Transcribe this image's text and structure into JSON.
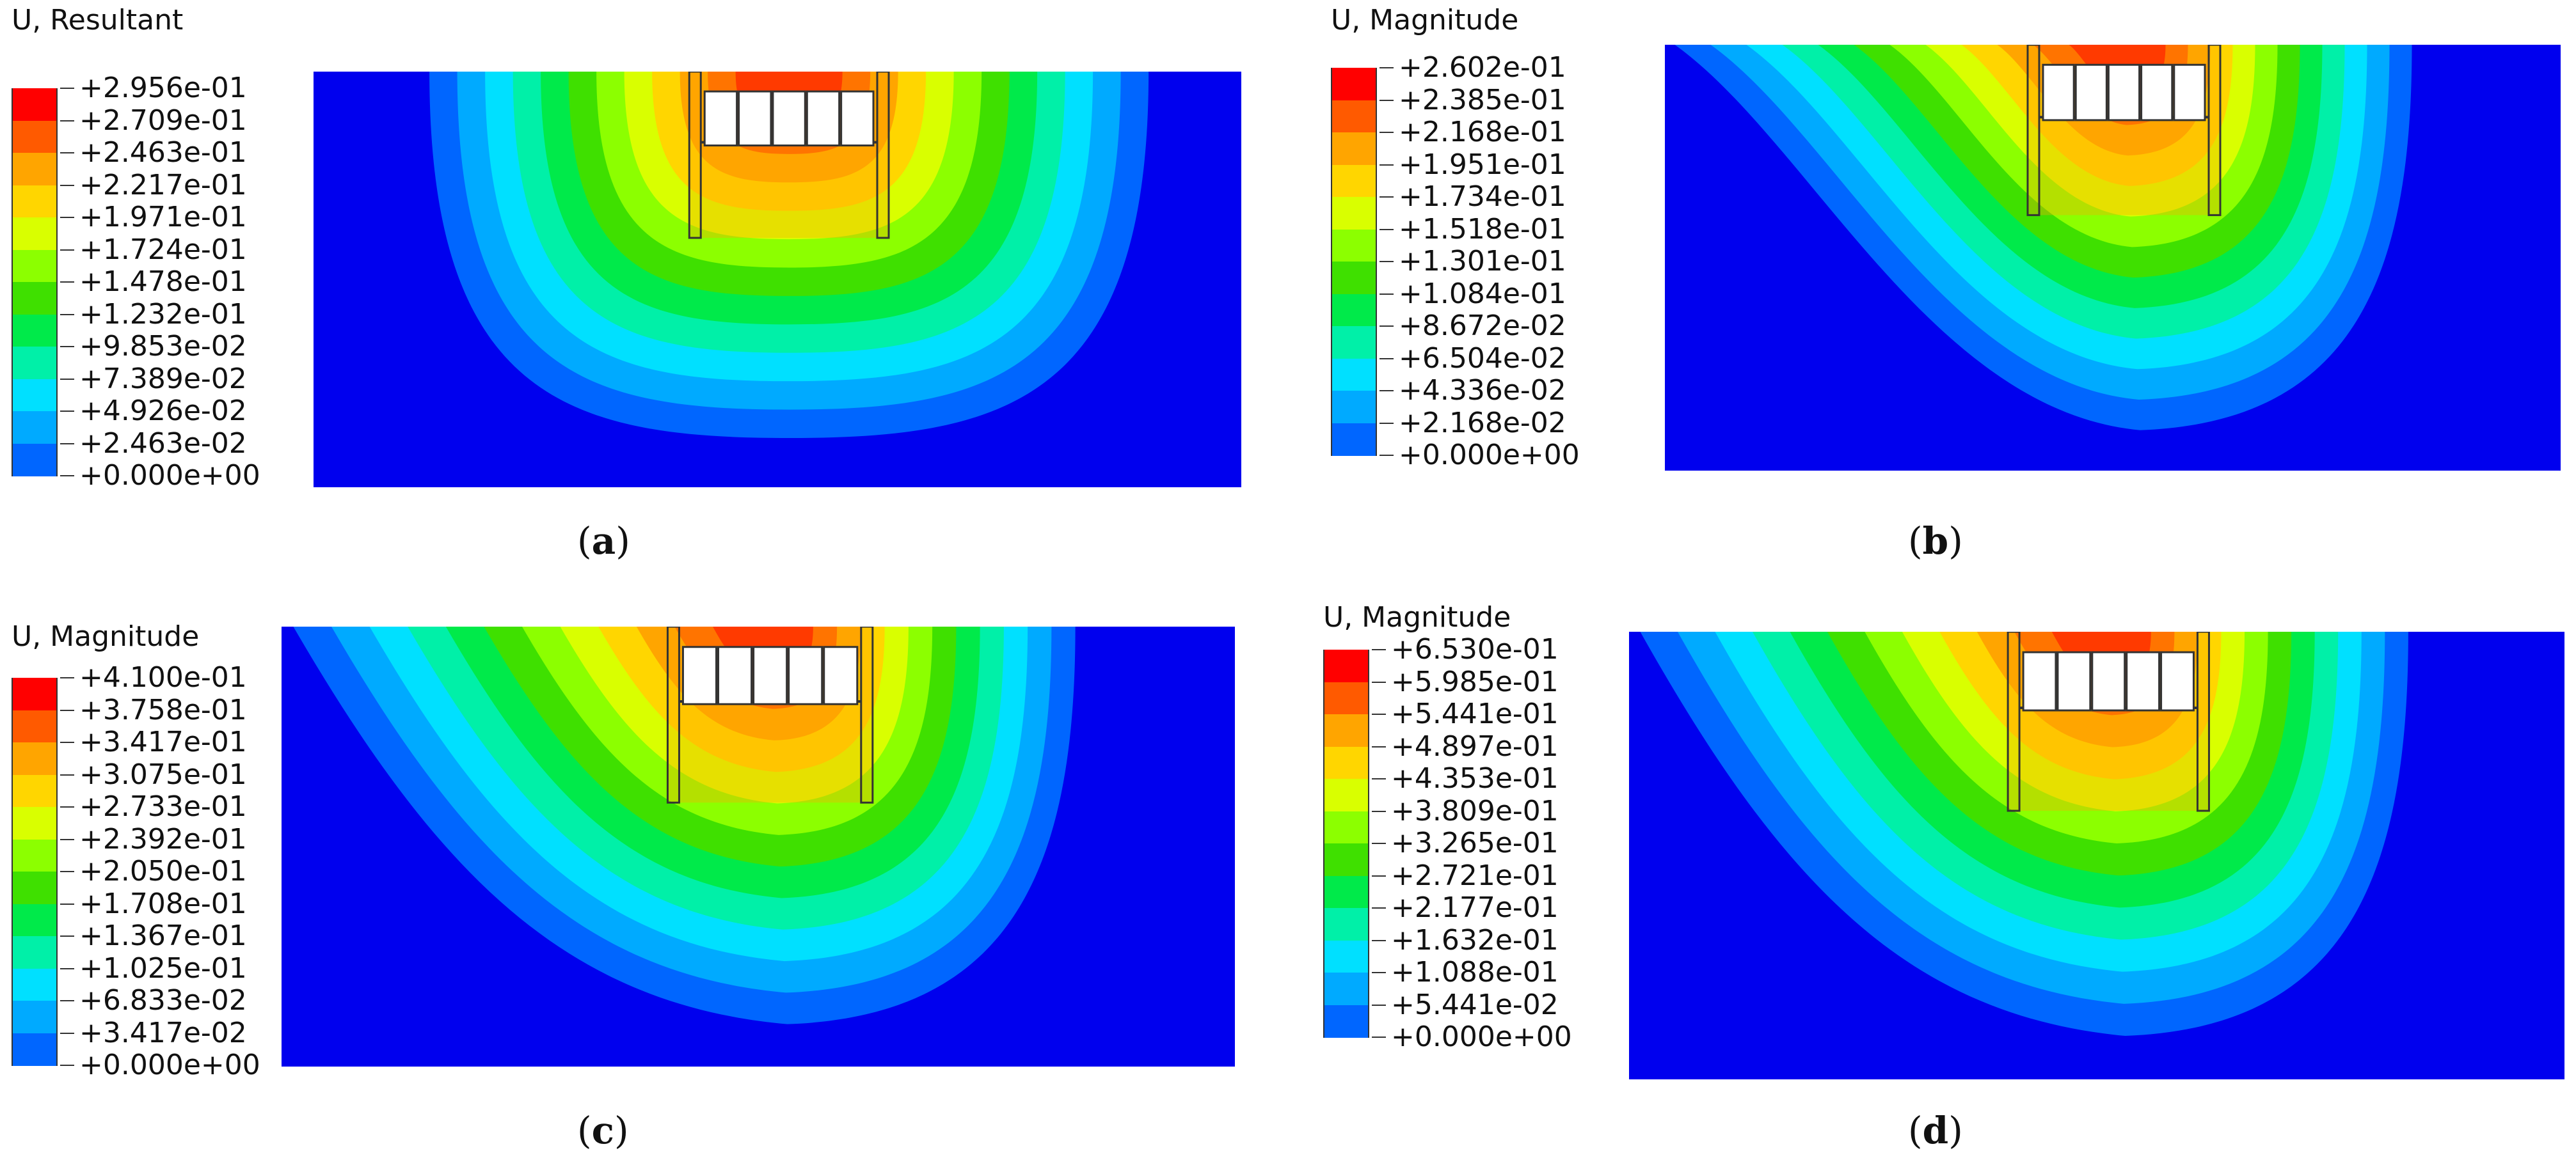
{
  "panels": [
    {
      "id": "a",
      "field_title": "U, Resultant",
      "caption_letter": "a",
      "legend_values": [
        "+2.956e-01",
        "+2.709e-01",
        "+2.463e-01",
        "+2.217e-01",
        "+1.971e-01",
        "+1.724e-01",
        "+1.478e-01",
        "+1.232e-01",
        "+9.853e-02",
        "+7.389e-02",
        "+4.926e-02",
        "+2.463e-02",
        "+0.000e+00"
      ],
      "contour_style": "symmetric"
    },
    {
      "id": "b",
      "field_title": "U, Magnitude",
      "caption_letter": "b",
      "legend_values": [
        "+2.602e-01",
        "+2.385e-01",
        "+2.168e-01",
        "+1.951e-01",
        "+1.734e-01",
        "+1.518e-01",
        "+1.301e-01",
        "+1.084e-01",
        "+8.672e-02",
        "+6.504e-02",
        "+4.336e-02",
        "+2.168e-02",
        "+0.000e+00"
      ],
      "contour_style": "skewed"
    },
    {
      "id": "c",
      "field_title": "U, Magnitude",
      "caption_letter": "c",
      "legend_values": [
        "+4.100e-01",
        "+3.758e-01",
        "+3.417e-01",
        "+3.075e-01",
        "+2.733e-01",
        "+2.392e-01",
        "+2.050e-01",
        "+1.708e-01",
        "+1.367e-01",
        "+1.025e-01",
        "+6.833e-02",
        "+3.417e-02",
        "+0.000e+00"
      ],
      "contour_style": "skewed-lobe"
    },
    {
      "id": "d",
      "field_title": "U, Magnitude",
      "caption_letter": "d",
      "legend_values": [
        "+6.530e-01",
        "+5.985e-01",
        "+5.441e-01",
        "+4.897e-01",
        "+4.353e-01",
        "+3.809e-01",
        "+3.265e-01",
        "+2.721e-01",
        "+2.177e-01",
        "+1.632e-01",
        "+1.088e-01",
        "+5.441e-02",
        "+0.000e+00"
      ],
      "contour_style": "skewed-lobe"
    }
  ],
  "colors": {
    "legend_bands": [
      "#ff0000",
      "#ff5a00",
      "#ffa500",
      "#ffd600",
      "#d9ff00",
      "#8cff00",
      "#3fe000",
      "#00ea4a",
      "#00f0a8",
      "#00e0ff",
      "#00aaff",
      "#0066ff",
      "#0000ee"
    ],
    "background_field": "#0000ee",
    "structure_fill": "#ffffff",
    "structure_stroke": "#333333"
  }
}
